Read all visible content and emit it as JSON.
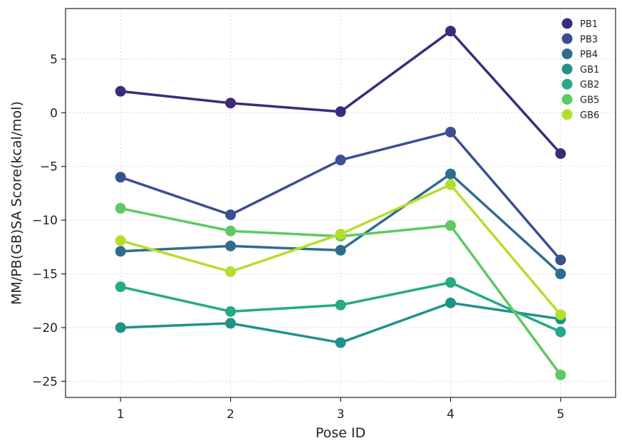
{
  "chart_data": {
    "type": "line",
    "title": "",
    "xlabel": "Pose ID",
    "ylabel": "MM/PB(GB)SA Score(kcal/mol)",
    "x": [
      1,
      2,
      3,
      4,
      5
    ],
    "xlim": [
      0.5,
      5.5
    ],
    "ylim": [
      -26.5,
      9.7
    ],
    "xticks": [
      1,
      2,
      3,
      4,
      5
    ],
    "yticks": [
      5,
      0,
      -5,
      -10,
      -15,
      -20,
      -25
    ],
    "ytick_labels": [
      "5",
      "0",
      "−5",
      "−10",
      "−15",
      "−20",
      "−25"
    ],
    "grid": true,
    "legend_position": "top-right",
    "series": [
      {
        "name": "PB1",
        "color": "#3e2a7d",
        "values": [
          2.0,
          0.9,
          0.1,
          7.6,
          -3.8
        ]
      },
      {
        "name": "PB3",
        "color": "#3b4f94",
        "values": [
          -6.0,
          -9.5,
          -4.4,
          -1.8,
          -13.7
        ]
      },
      {
        "name": "PB4",
        "color": "#2f6d8e",
        "values": [
          -12.9,
          -12.4,
          -12.8,
          -5.7,
          -15.0
        ]
      },
      {
        "name": "GB1",
        "color": "#21918c",
        "values": [
          -20.0,
          -19.6,
          -21.4,
          -17.7,
          -19.2
        ]
      },
      {
        "name": "GB2",
        "color": "#25ab82",
        "values": [
          -16.2,
          -18.5,
          -17.9,
          -15.8,
          -20.4
        ]
      },
      {
        "name": "GB5",
        "color": "#5ec962",
        "values": [
          -8.9,
          -11.0,
          -11.5,
          -10.5,
          -24.4
        ]
      },
      {
        "name": "GB6",
        "color": "#b5de2b",
        "values": [
          -11.9,
          -14.8,
          -11.3,
          -6.7,
          -18.8
        ]
      }
    ]
  }
}
